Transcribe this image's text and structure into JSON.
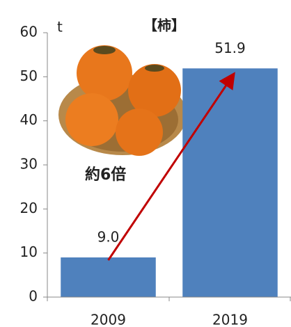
{
  "chart_data": {
    "type": "bar",
    "title": "【柿】",
    "y_label": "t",
    "categories": [
      "2009",
      "2019"
    ],
    "values": [
      9.0,
      51.9
    ],
    "value_labels": [
      "9.0",
      "51.9"
    ],
    "color": "#4f81bd",
    "ylim": [
      0,
      60
    ],
    "yticks": [
      0,
      10,
      20,
      30,
      40,
      50,
      60
    ],
    "grid": false,
    "annotation": "約6倍",
    "annotation_color": "#c00000"
  }
}
